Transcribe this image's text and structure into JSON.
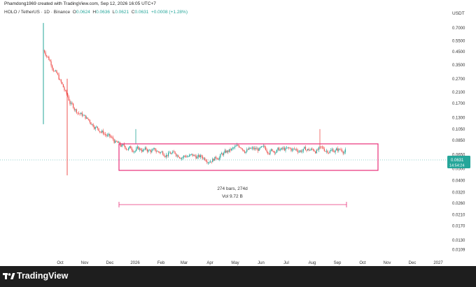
{
  "header": {
    "created_by": "Phamdong1969 created with TradingView.com, Sep 12, 2026 16:05 UTC+7"
  },
  "symbol": {
    "pair": "HOLO / TetherUS · 1D · Binance",
    "open_label": "O",
    "open": "0.0624",
    "high_label": "H",
    "high": "0.0636",
    "low_label": "L",
    "low": "0.0621",
    "close_label": "C",
    "close": "0.0631",
    "change": "+0.0008 (+1.28%)"
  },
  "currency": "USDT",
  "colors": {
    "up": "#26a69a",
    "down": "#ef5350",
    "range_box": "#e8307a",
    "price_badge": "#26a69a"
  },
  "price_axis": [
    "0.7000",
    "0.5500",
    "0.4500",
    "0.3500",
    "0.2700",
    "0.2100",
    "0.1700",
    "0.1300",
    "0.1050",
    "0.0850",
    "0.0650",
    "0.0500",
    "0.0400",
    "0.0320",
    "0.0260",
    "0.0210",
    "0.0170",
    "0.0130",
    "0.0109"
  ],
  "time_axis": [
    "Oct",
    "Nov",
    "Dec",
    "2026",
    "Feb",
    "Mar",
    "Apr",
    "May",
    "Jun",
    "Jul",
    "Aug",
    "Sep",
    "Oct",
    "Nov",
    "Dec",
    "2027"
  ],
  "price_badge": {
    "price": "0.0631",
    "countdown": "14:54:24"
  },
  "measure": {
    "bars": "274 bars, 274d",
    "volume": "Vol 9.72 B"
  },
  "brand": {
    "name": "TradingView",
    "icon": "tradingview-logo-icon"
  },
  "chart_data": {
    "type": "candlestick",
    "title": "",
    "y_scale": "log",
    "ylim": [
      0.0095,
      0.8
    ],
    "range_box": {
      "high": 0.088,
      "low": 0.052
    },
    "start_price": 0.46,
    "spikes": [
      {
        "month": "Sep 2025",
        "high": 0.77,
        "low": 0.115
      },
      {
        "month": "Oct 2025",
        "high": 0.27,
        "low": 0.044
      },
      {
        "month": "Dec 2025",
        "high": 0.105
      },
      {
        "month": "Aug 2026",
        "high": 0.105
      }
    ],
    "last_close": 0.0631
  }
}
